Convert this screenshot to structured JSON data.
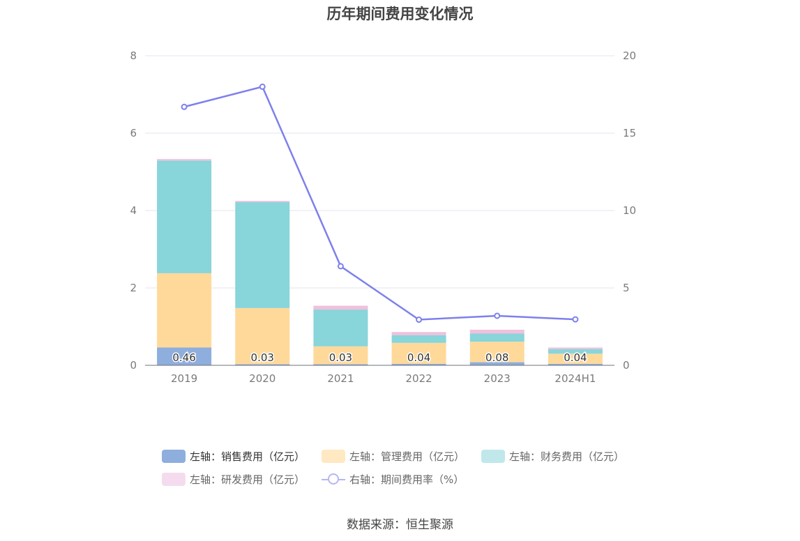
{
  "chart_data": {
    "type": "bar",
    "title": "历年期间费用变化情况",
    "categories": [
      "2019",
      "2020",
      "2021",
      "2022",
      "2023",
      "2024H1"
    ],
    "left_axis": {
      "ylim": [
        0,
        8
      ],
      "ticks": [
        0,
        2,
        4,
        6,
        8
      ]
    },
    "right_axis": {
      "ylim": [
        0,
        20
      ],
      "ticks": [
        0,
        5,
        10,
        15,
        20
      ]
    },
    "stacked": true,
    "grid": true,
    "legend_position": "bottom",
    "series": [
      {
        "name": "左轴：销售费用（亿元）",
        "axis": "left",
        "color": "#8eaedd",
        "values": [
          0.46,
          0.03,
          0.03,
          0.04,
          0.08,
          0.04
        ],
        "labels": [
          "0.46",
          "0.03",
          "0.03",
          "0.04",
          "0.08",
          "0.04"
        ]
      },
      {
        "name": "左轴：管理费用（亿元）",
        "axis": "left",
        "color": "#ffd99a",
        "values": [
          1.92,
          1.45,
          0.46,
          0.54,
          0.53,
          0.26
        ]
      },
      {
        "name": "左轴：财务费用（亿元）",
        "axis": "left",
        "color": "#88d5da",
        "values": [
          2.91,
          2.74,
          0.95,
          0.2,
          0.21,
          0.12
        ]
      },
      {
        "name": "左轴：研发费用（亿元）",
        "axis": "left",
        "color": "#f0c0dc",
        "values": [
          0.04,
          0.03,
          0.1,
          0.08,
          0.1,
          0.04
        ]
      },
      {
        "name": "右轴：期间费用率（%）",
        "axis": "right",
        "type": "line",
        "color": "#7e80ec",
        "values": [
          16.7,
          18.0,
          6.4,
          2.95,
          3.2,
          2.97
        ]
      }
    ],
    "legend_colors": [
      "#8eaedd",
      "#ffe8c2",
      "#c0e8ea",
      "#f4dcee",
      "#b5b7f2"
    ]
  },
  "source": "数据来源：恒生聚源"
}
